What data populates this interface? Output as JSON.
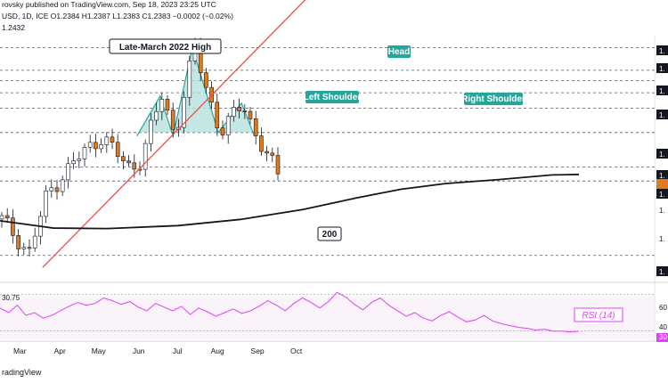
{
  "header": {
    "line1": "rovsky published on TradingView.com, Sep 18, 2023 23:25 UTC",
    "line2": "USD, 1D, ICE  O1.2384  H1.2387  L1.2383  C1.2383  −0.0002 (−0.02%)",
    "line3": "1.2432"
  },
  "footer": {
    "brand": "radingView"
  },
  "colors": {
    "up": "#ffffff",
    "down": "#e07a1f",
    "wick": "#131722",
    "trendline": "#ef4b4b",
    "ma": "#131722",
    "pattern": "#26a69a",
    "pattern_fill": "#b2dfdb",
    "rsi": "#e040fb",
    "level": "#555555"
  },
  "chart_data": [
    {
      "type": "candlestick",
      "title": "",
      "annotations": [
        "Late-March 2022 High",
        "Head",
        "Left Shoulder",
        "Right Shoulder",
        "200"
      ],
      "x_tick_labels": [
        "Mar",
        "Apr",
        "May",
        "Jun",
        "Jul",
        "Aug",
        "Sep",
        "Oct"
      ],
      "y_labels": [
        "1.",
        "1.",
        "1.",
        "1.",
        "1.",
        "1.",
        "1.",
        "1.",
        "1.",
        "1.",
        "1.",
        "1.",
        "1."
      ],
      "ylim": [
        1.18,
        1.32
      ],
      "moving_average": {
        "label": "200",
        "period": 200
      },
      "trendline": {
        "from": [
          "2023-03-20",
          1.186
        ],
        "to": [
          "2023-10-15",
          1.345
        ]
      },
      "horizontal_levels": [
        1.313,
        1.3,
        1.294,
        1.287,
        1.278,
        1.264,
        1.244,
        1.236,
        1.193
      ],
      "neckline": 1.264,
      "pattern_points": {
        "left_shoulder": [
          [
            "2023-06-01",
            1.262
          ],
          [
            "2023-06-19",
            1.285
          ],
          [
            "2023-06-29",
            1.262
          ]
        ],
        "head": [
          [
            "2023-06-29",
            1.262
          ],
          [
            "2023-07-14",
            1.313
          ],
          [
            "2023-08-03",
            1.264
          ]
        ],
        "right_shoulder": [
          [
            "2023-08-03",
            1.264
          ],
          [
            "2023-08-21",
            1.281
          ],
          [
            "2023-08-31",
            1.262
          ]
        ]
      },
      "last_close": 1.2383
    },
    {
      "type": "line",
      "title": "",
      "series": [
        {
          "name": "RSI (14)",
          "values": [
            55,
            50,
            58,
            47,
            50,
            44,
            47,
            52,
            57,
            61,
            58,
            60,
            66,
            63,
            59,
            62,
            56,
            52,
            60,
            56,
            52,
            57,
            48,
            55,
            51,
            46,
            50,
            54,
            49,
            52,
            57,
            63,
            58,
            52,
            60,
            66,
            61,
            55,
            62,
            72,
            67,
            59,
            53,
            61,
            66,
            58,
            52,
            46,
            50,
            44,
            41,
            47,
            51,
            45,
            40,
            42,
            47,
            41,
            38,
            36,
            34,
            33,
            31,
            32,
            30,
            30,
            29,
            30
          ]
        }
      ],
      "levels": [
        "30.75",
        "60",
        "40",
        "30"
      ],
      "ylim": [
        20,
        80
      ]
    }
  ]
}
